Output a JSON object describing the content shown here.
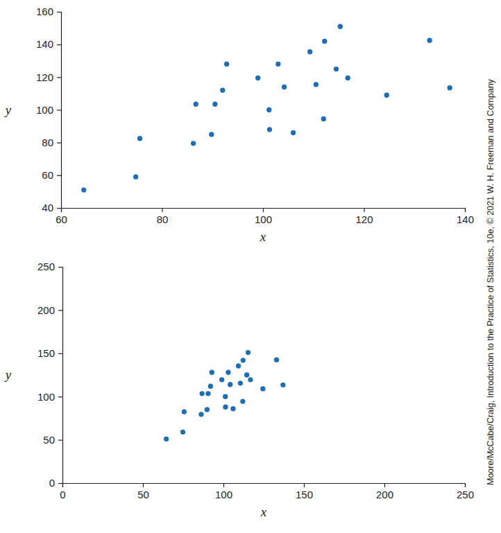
{
  "chart_data": [
    {
      "type": "scatter",
      "xlabel": "x",
      "ylabel": "y",
      "color": "#1f6db3",
      "marker": "circle",
      "x": [
        64.5,
        74.8,
        75.6,
        86.2,
        86.7,
        89.8,
        90.5,
        92,
        92.8,
        99,
        101.2,
        101.3,
        103,
        104.2,
        106,
        109.3,
        110.5,
        112,
        112.2,
        114.5,
        115.3,
        116.8,
        124.5,
        133,
        137
      ],
      "y": [
        51,
        59,
        82.5,
        79.5,
        103.5,
        85,
        103.5,
        112,
        128,
        119.5,
        100,
        88,
        128,
        114,
        86,
        135.5,
        115.5,
        94.5,
        142,
        125,
        151,
        119.5,
        109,
        142.5,
        113.5
      ],
      "xlim": [
        60,
        140
      ],
      "ylim": [
        40,
        160
      ],
      "xticks": [
        60,
        80,
        100,
        120,
        140
      ],
      "yticks": [
        40,
        60,
        80,
        100,
        120,
        140,
        160
      ]
    },
    {
      "type": "scatter",
      "xlabel": "x",
      "ylabel": "y",
      "color": "#1f6db3",
      "marker": "circle",
      "x": [
        64.5,
        74.8,
        75.6,
        86.2,
        86.7,
        89.8,
        90.5,
        92,
        92.8,
        99,
        101.2,
        101.3,
        103,
        104.2,
        106,
        109.3,
        110.5,
        112,
        112.2,
        114.5,
        115.3,
        116.8,
        124.5,
        133,
        137
      ],
      "y": [
        51,
        59,
        82.5,
        79.5,
        103.5,
        85,
        103.5,
        112,
        128,
        119.5,
        100,
        88,
        128,
        114,
        86,
        135.5,
        115.5,
        94.5,
        142,
        125,
        151,
        119.5,
        109,
        142.5,
        113.5
      ],
      "xlim": [
        0,
        250
      ],
      "ylim": [
        0,
        250
      ],
      "xticks": [
        0,
        50,
        100,
        150,
        200,
        250
      ],
      "yticks": [
        0,
        50,
        100,
        150,
        200,
        250
      ]
    }
  ],
  "credit": "Moore/McCabe/Craig, Introduction to the Practice of Statistics, 10e, © 2021 W. H. Freeman and Company"
}
